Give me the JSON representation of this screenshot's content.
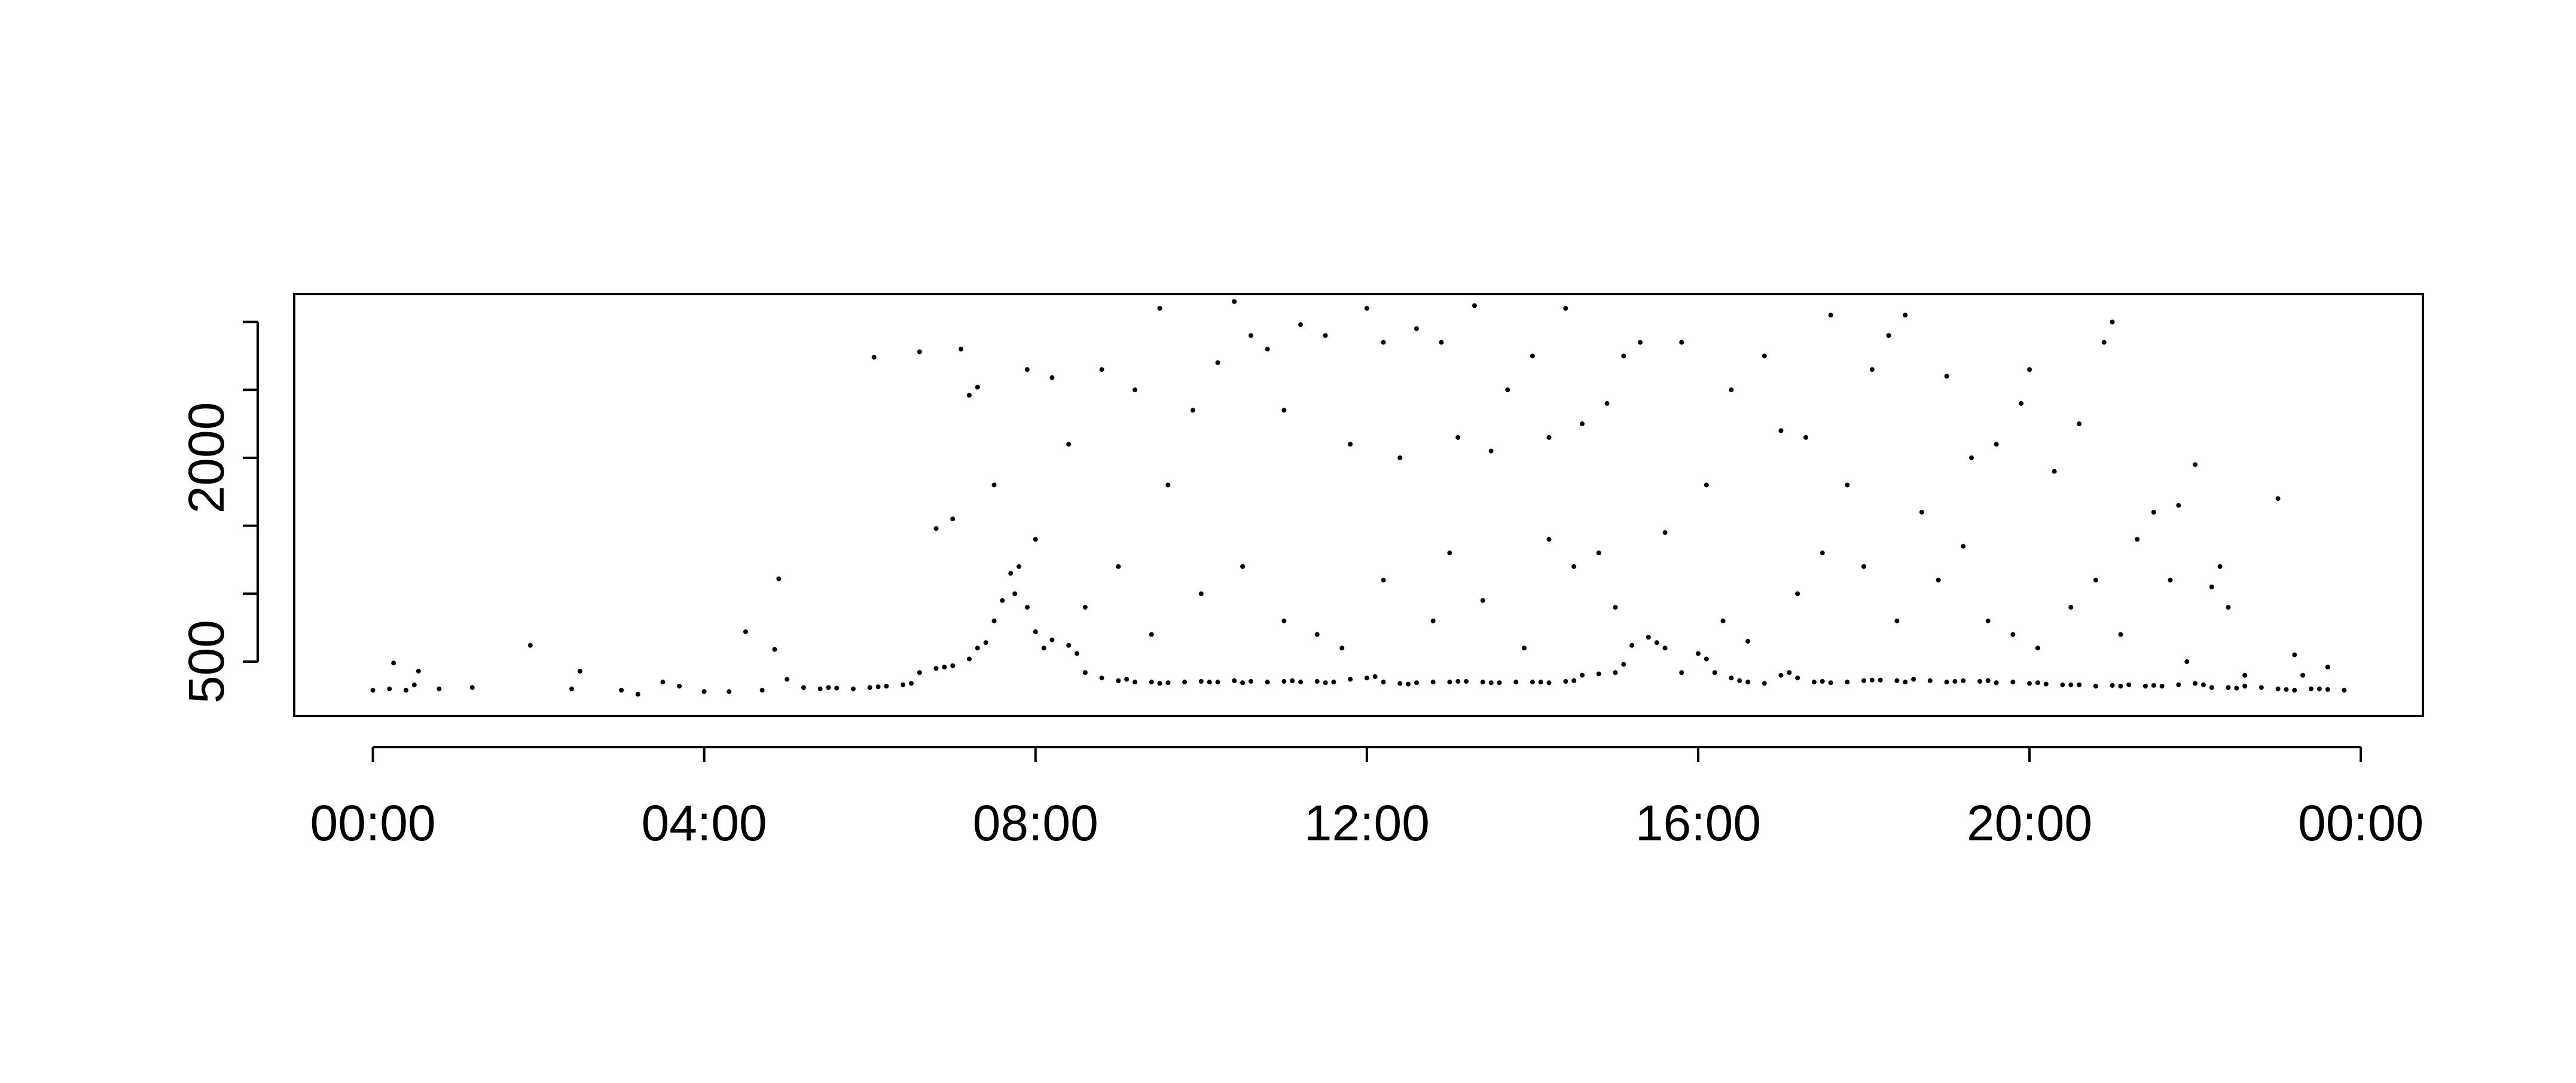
{
  "chart_data": {
    "type": "scatter",
    "color": "#000000",
    "xlim": [
      -0.95,
      24.75
    ],
    "ylim": [
      100,
      3205
    ],
    "xticks": [
      {
        "value": 0,
        "label": "00:00"
      },
      {
        "value": 4,
        "label": "04:00"
      },
      {
        "value": 8,
        "label": "08:00"
      },
      {
        "value": 12,
        "label": "12:00"
      },
      {
        "value": 16,
        "label": "16:00"
      },
      {
        "value": 20,
        "label": "20:00"
      },
      {
        "value": 24,
        "label": "00:00"
      }
    ],
    "yticks": [
      500,
      {
        "value": 1000,
        "label": null
      },
      {
        "value": 1500,
        "label": null
      },
      2000,
      {
        "value": 2500,
        "label": null
      },
      {
        "value": 3000,
        "label": null
      }
    ],
    "x": [
      0,
      0.2,
      0.25,
      0.4,
      0.5,
      0.55,
      0.8,
      1.2,
      1.9,
      2.4,
      2.5,
      3,
      3.2,
      3.5,
      3.7,
      4,
      4.3,
      4.5,
      4.7,
      4.85,
      4.9,
      5,
      5.2,
      5.4,
      5.6,
      5.8,
      6,
      6.2,
      6.4,
      6.6,
      6.8,
      7,
      7.2,
      7.4,
      7.6,
      7.7,
      7.8,
      7.9,
      8,
      8.2,
      8.4,
      8.6,
      8.8,
      9,
      9.2,
      9.4,
      9.6,
      9.8,
      10,
      10.2,
      10.4,
      10.6,
      10.8,
      11,
      11.2,
      11.4,
      11.6,
      11.8,
      12,
      12.2,
      12.4,
      12.6,
      12.8,
      13,
      13.2,
      13.4,
      13.6,
      13.8,
      14,
      14.2,
      14.4,
      14.6,
      14.8,
      15,
      15.2,
      15.4,
      15.6,
      15.8,
      16,
      16.2,
      16.4,
      16.6,
      16.8,
      17,
      17.2,
      17.4,
      17.6,
      17.8,
      18,
      18.2,
      18.4,
      18.6,
      18.8,
      19,
      19.2,
      19.4,
      19.6,
      19.8,
      20,
      20.2,
      20.4,
      20.6,
      20.8,
      21,
      21.2,
      21.4,
      21.6,
      21.8,
      22,
      22.2,
      22.4,
      22.6,
      22.8,
      23,
      23.2,
      23.4,
      23.6,
      23.8,
      7.5,
      7.75,
      8.1,
      7.3,
      5.5,
      6.1,
      6.5,
      6.9,
      8.5,
      9.1,
      9.5,
      10.1,
      10.5,
      11.1,
      11.5,
      12.1,
      12.5,
      13.1,
      13.5,
      14.1,
      14.5,
      15.1,
      15.5,
      16.1,
      16.5,
      17.1,
      17.5,
      18.1,
      18.5,
      19.1,
      19.5,
      20.1,
      20.5,
      21.1,
      21.5,
      22.1,
      22.5,
      23.1,
      23.5,
      6.05,
      6.6,
      7.1,
      7.2,
      7.3,
      6.8,
      7,
      7.5,
      7.9,
      8.2,
      8.4,
      8.8,
      9.2,
      9.5,
      9.6,
      9.9,
      10.2,
      10.4,
      10.6,
      10.8,
      11,
      11.2,
      11.5,
      11.8,
      12,
      12.2,
      12.4,
      12.6,
      12.9,
      13.1,
      13.3,
      13.5,
      13.7,
      14,
      14.2,
      14.4,
      14.6,
      14.9,
      15.1,
      15.3,
      15.6,
      15.8,
      16.1,
      16.4,
      16.8,
      17,
      17.3,
      17.6,
      17.8,
      18.1,
      18.3,
      18.5,
      18.7,
      19,
      19.3,
      19.6,
      19.9,
      20,
      20.3,
      20.6,
      20.9,
      21,
      21.3,
      21.5,
      21.8,
      22,
      22.2,
      22.3,
      22.4,
      23,
      23.3,
      23.6,
      8,
      8.6,
      9,
      9.4,
      10,
      10.5,
      11,
      11.4,
      11.7,
      12.2,
      12.8,
      13,
      13.4,
      13.9,
      14.2,
      14.5,
      14.8,
      15,
      16.3,
      16.6,
      17.2,
      17.5,
      18,
      18.4,
      18.9,
      19.2,
      19.5,
      19.8,
      20.1,
      20.5,
      20.8,
      21.1,
      21.7,
      21.9,
      22.6,
      23.2
    ],
    "values": [
      290,
      300,
      490,
      290,
      330,
      430,
      300,
      310,
      620,
      300,
      430,
      290,
      260,
      350,
      320,
      280,
      280,
      720,
      290,
      590,
      1110,
      370,
      310,
      300,
      305,
      300,
      310,
      320,
      330,
      420,
      450,
      470,
      520,
      640,
      950,
      1150,
      1200,
      900,
      720,
      660,
      620,
      420,
      380,
      360,
      350,
      350,
      345,
      350,
      355,
      350,
      360,
      355,
      350,
      355,
      350,
      355,
      350,
      370,
      380,
      350,
      340,
      345,
      350,
      350,
      355,
      350,
      345,
      350,
      350,
      345,
      355,
      400,
      410,
      420,
      620,
      680,
      600,
      420,
      560,
      420,
      380,
      350,
      340,
      400,
      380,
      350,
      345,
      350,
      360,
      365,
      360,
      370,
      360,
      350,
      360,
      355,
      345,
      350,
      340,
      335,
      330,
      330,
      320,
      325,
      330,
      320,
      320,
      330,
      340,
      310,
      310,
      320,
      310,
      300,
      290,
      300,
      295,
      290,
      800,
      1000,
      600,
      600,
      310,
      315,
      340,
      460,
      560,
      370,
      340,
      350,
      345,
      360,
      345,
      390,
      335,
      355,
      345,
      350,
      360,
      480,
      640,
      520,
      360,
      420,
      355,
      365,
      350,
      355,
      360,
      345,
      330,
      320,
      325,
      330,
      305,
      295,
      300,
      2740,
      2780,
      2800,
      2460,
      2520,
      1480,
      1550,
      1800,
      2650,
      2590,
      2100,
      2650,
      2500,
      3100,
      1800,
      2350,
      2700,
      3150,
      2900,
      2800,
      2350,
      2980,
      2900,
      2100,
      3100,
      2850,
      2000,
      2950,
      2850,
      2150,
      3120,
      2050,
      2500,
      2750,
      2150,
      3100,
      2250,
      2400,
      2750,
      2850,
      1450,
      2850,
      1800,
      2500,
      2750,
      2200,
      2150,
      3050,
      1800,
      2650,
      2900,
      3050,
      1600,
      2600,
      2000,
      2100,
      2400,
      2650,
      1900,
      2250,
      2850,
      3000,
      1400,
      1600,
      1650,
      1950,
      1050,
      1200,
      900,
      1700,
      400,
      460,
      1400,
      900,
      1200,
      700,
      1000,
      1200,
      800,
      700,
      600,
      1100,
      800,
      1300,
      950,
      600,
      1400,
      1200,
      1300,
      900,
      800,
      650,
      1000,
      1300,
      1200,
      800,
      1100,
      1350,
      800,
      700,
      600,
      900,
      1100,
      700,
      1100,
      500,
      400,
      550
    ]
  }
}
